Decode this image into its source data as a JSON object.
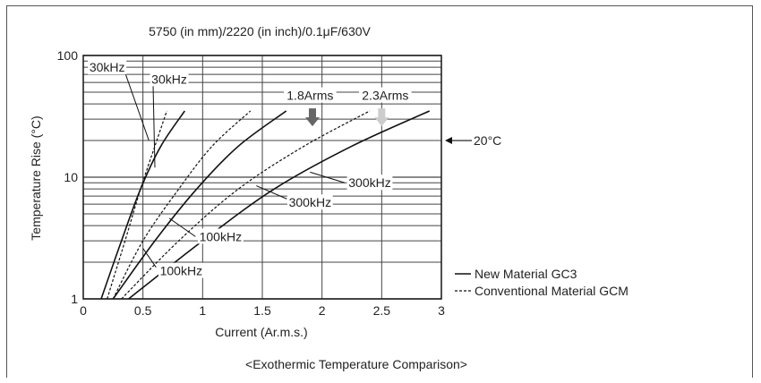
{
  "chart_data": {
    "type": "line",
    "title": "5750 (in mm)/2220 (in inch)/0.1μF/630V",
    "caption": "<Exothermic Temperature Comparison>",
    "xlabel": "Current (Ar.m.s.)",
    "ylabel": "Temperature Rise (°C)",
    "x_scale": "linear",
    "y_scale": "log",
    "xlim": [
      0,
      3
    ],
    "ylim": [
      1,
      100
    ],
    "x_ticks": [
      "0",
      "0.5",
      "1",
      "1.5",
      "2",
      "2.5",
      "3"
    ],
    "y_ticks": [
      "1",
      "10",
      "100"
    ],
    "grid": true,
    "legend_position": "bottom-right",
    "legend": [
      {
        "label": "New Material GC3",
        "style": "solid"
      },
      {
        "label": "Conventional Material GCM",
        "style": "dashed"
      }
    ],
    "series": [
      {
        "style": "dashed",
        "points": [
          [
            0.2,
            1
          ],
          [
            0.35,
            3
          ],
          [
            0.48,
            8
          ],
          [
            0.6,
            18
          ],
          [
            0.7,
            35
          ]
        ]
      },
      {
        "style": "solid",
        "points": [
          [
            0.15,
            1
          ],
          [
            0.32,
            3
          ],
          [
            0.48,
            8
          ],
          [
            0.65,
            18
          ],
          [
            0.85,
            35
          ]
        ]
      },
      {
        "style": "dashed",
        "points": [
          [
            0.25,
            1
          ],
          [
            0.5,
            3
          ],
          [
            0.8,
            8
          ],
          [
            1.08,
            18
          ],
          [
            1.4,
            35
          ]
        ]
      },
      {
        "style": "solid",
        "points": [
          [
            0.25,
            1
          ],
          [
            0.6,
            3
          ],
          [
            0.95,
            8
          ],
          [
            1.3,
            18
          ],
          [
            1.7,
            35
          ]
        ]
      },
      {
        "style": "dashed",
        "points": [
          [
            0.32,
            1
          ],
          [
            0.8,
            3
          ],
          [
            1.3,
            8
          ],
          [
            1.85,
            18
          ],
          [
            2.4,
            35
          ]
        ]
      },
      {
        "style": "solid",
        "points": [
          [
            0.38,
            1
          ],
          [
            1.0,
            3
          ],
          [
            1.6,
            8
          ],
          [
            2.25,
            18
          ],
          [
            2.9,
            35
          ]
        ]
      }
    ],
    "annotations": [
      {
        "text": "30kHz",
        "x": 0.2,
        "y": 80
      },
      {
        "text": "30kHz",
        "x": 0.72,
        "y": 64
      },
      {
        "text": "1.8Arms",
        "x": 1.9,
        "y": 47
      },
      {
        "text": "2.3Arms",
        "x": 2.53,
        "y": 47
      },
      {
        "text": "20°C",
        "x": 3.3,
        "y": 20
      },
      {
        "text": "300kHz",
        "x": 2.4,
        "y": 9
      },
      {
        "text": "300kHz",
        "x": 1.9,
        "y": 6.2
      },
      {
        "text": "100kHz",
        "x": 1.15,
        "y": 3.25
      },
      {
        "text": "100kHz",
        "x": 0.82,
        "y": 1.7
      }
    ],
    "markers": [
      {
        "type": "arrow-down",
        "x": 1.92,
        "y": 30,
        "color": "#666666"
      },
      {
        "type": "arrow-down",
        "x": 2.5,
        "y": 30,
        "color": "#cccccc"
      }
    ]
  }
}
